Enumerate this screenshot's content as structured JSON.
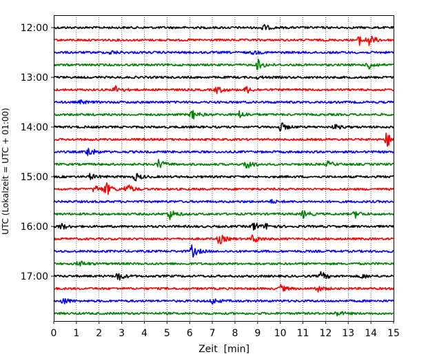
{
  "chart_data": {
    "type": "line",
    "subtype": "seismogram-helicorder",
    "xlabel": "Zeit  [min]",
    "ylabel": "UTC (Lokalzeit = UTC + 01:00)",
    "xlim": [
      0,
      15
    ],
    "x_ticks": [
      "0",
      "1",
      "2",
      "3",
      "4",
      "5",
      "6",
      "7",
      "8",
      "9",
      "10",
      "11",
      "12",
      "13",
      "14",
      "15"
    ],
    "y_ticks": [
      "12:00",
      "13:00",
      "14:00",
      "15:00",
      "16:00",
      "17:00"
    ],
    "grid": "vertical-dotted",
    "color_cycle": [
      "#000000",
      "#ff0000",
      "#0000ff",
      "#008000"
    ],
    "traces": [
      {
        "start": "12:00",
        "events": [
          [
            9.2,
            0.45
          ]
        ]
      },
      {
        "start": "12:15",
        "events": [
          [
            13.5,
            0.6
          ],
          [
            13.9,
            0.7
          ]
        ]
      },
      {
        "start": "12:30",
        "events": [
          [
            2.5,
            0.25
          ],
          [
            8.8,
            0.2
          ]
        ]
      },
      {
        "start": "12:45",
        "events": [
          [
            9.0,
            0.7
          ],
          [
            13.9,
            0.6
          ]
        ]
      },
      {
        "start": "13:00",
        "events": [
          [
            9.0,
            0.15
          ]
        ]
      },
      {
        "start": "13:15",
        "events": [
          [
            2.7,
            0.55
          ],
          [
            7.2,
            0.5
          ],
          [
            8.5,
            0.45
          ]
        ]
      },
      {
        "start": "13:30",
        "events": [
          [
            1.2,
            0.2
          ]
        ]
      },
      {
        "start": "13:45",
        "events": [
          [
            6.1,
            0.65
          ],
          [
            8.2,
            0.45
          ]
        ]
      },
      {
        "start": "14:00",
        "events": [
          [
            10.0,
            0.6
          ],
          [
            12.4,
            0.3
          ]
        ]
      },
      {
        "start": "14:15",
        "events": [
          [
            14.7,
            1.0
          ]
        ]
      },
      {
        "start": "14:30",
        "events": [
          [
            1.5,
            0.7
          ]
        ]
      },
      {
        "start": "14:45",
        "events": [
          [
            4.6,
            0.65
          ],
          [
            8.5,
            0.7
          ],
          [
            12.1,
            0.35
          ]
        ]
      },
      {
        "start": "15:00",
        "events": [
          [
            1.6,
            0.35
          ],
          [
            3.6,
            0.5
          ]
        ]
      },
      {
        "start": "15:15",
        "events": [
          [
            1.8,
            0.55
          ],
          [
            2.3,
            0.85
          ],
          [
            3.2,
            0.75
          ]
        ]
      },
      {
        "start": "15:30",
        "events": [
          [
            9.6,
            0.2
          ]
        ]
      },
      {
        "start": "15:45",
        "events": [
          [
            5.1,
            0.7
          ],
          [
            11.0,
            0.5
          ],
          [
            13.3,
            0.45
          ]
        ]
      },
      {
        "start": "16:00",
        "events": [
          [
            0.3,
            0.45
          ],
          [
            8.8,
            0.6
          ],
          [
            9.4,
            0.35
          ]
        ]
      },
      {
        "start": "16:15",
        "events": [
          [
            7.3,
            0.7
          ],
          [
            8.8,
            0.6
          ]
        ]
      },
      {
        "start": "16:30",
        "events": [
          [
            6.1,
            0.8
          ]
        ]
      },
      {
        "start": "16:45",
        "events": [
          [
            1.1,
            0.45
          ]
        ]
      },
      {
        "start": "17:00",
        "events": [
          [
            2.8,
            0.65
          ],
          [
            11.8,
            0.55
          ],
          [
            13.6,
            0.3
          ]
        ]
      },
      {
        "start": "17:15",
        "events": [
          [
            10.0,
            0.45
          ],
          [
            11.6,
            0.45
          ]
        ]
      },
      {
        "start": "17:30",
        "events": [
          [
            0.4,
            0.45
          ],
          [
            7.0,
            0.4
          ]
        ]
      },
      {
        "start": "17:45",
        "events": [
          [
            12.5,
            0.3
          ]
        ]
      }
    ]
  }
}
